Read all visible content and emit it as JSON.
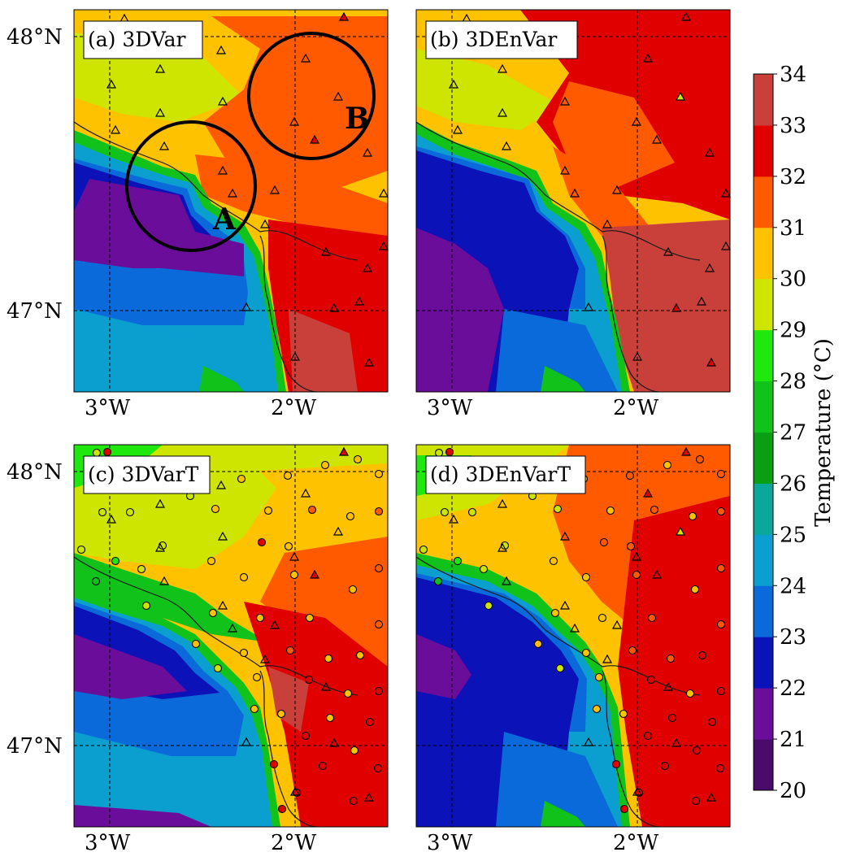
{
  "panels": [
    {
      "id": "a",
      "label": "(a) 3DVar"
    },
    {
      "id": "b",
      "label": "(b) 3DEnVar"
    },
    {
      "id": "c",
      "label": "(c) 3DVarT"
    },
    {
      "id": "d",
      "label": "(d) 3DEnVarT"
    }
  ],
  "axes": {
    "lat_ticks": [
      "48°N",
      "47°N"
    ],
    "lon_ticks": [
      "3°W",
      "2°W"
    ]
  },
  "annotations": [
    {
      "panel": "a",
      "text": "A"
    },
    {
      "panel": "a",
      "text": "B"
    }
  ],
  "colorbar": {
    "label": "Temperature (°C)",
    "ticks": [
      "20",
      "21",
      "22",
      "23",
      "24",
      "25",
      "26",
      "27",
      "28",
      "29",
      "30",
      "31",
      "32",
      "33",
      "34"
    ],
    "colors": [
      "#4a0c6b",
      "#6a0d9a",
      "#0b12b8",
      "#0a6ad9",
      "#0b9fd0",
      "#0aa79a",
      "#0a9e14",
      "#11c21a",
      "#1ee80e",
      "#cde500",
      "#ffc200",
      "#ff5a00",
      "#e10000",
      "#c9403a"
    ]
  }
}
